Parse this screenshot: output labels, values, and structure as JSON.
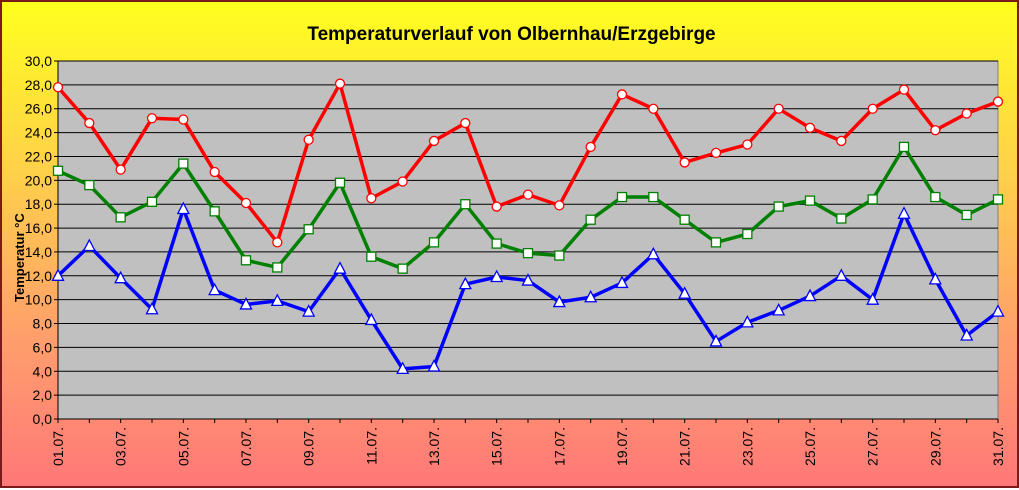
{
  "chart_data": {
    "type": "line",
    "title": "Temperaturverlauf von Olbernhau/Erzgebirge",
    "xlabel": "",
    "ylabel": "Temperatur °C",
    "ylim": [
      0,
      30
    ],
    "y_ticks": [
      "0,0",
      "2,0",
      "4,0",
      "6,0",
      "8,0",
      "10,0",
      "12,0",
      "14,0",
      "16,0",
      "18,0",
      "20,0",
      "22,0",
      "24,0",
      "26,0",
      "28,0",
      "30,0"
    ],
    "x": [
      "01.07.",
      "02.07.",
      "03.07.",
      "04.07.",
      "05.07.",
      "06.07.",
      "07.07.",
      "08.07.",
      "09.07.",
      "10.07.",
      "11.07.",
      "12.07.",
      "13.07.",
      "14.07.",
      "15.07.",
      "16.07.",
      "17.07.",
      "18.07.",
      "19.07.",
      "20.07.",
      "21.07.",
      "22.07.",
      "23.07.",
      "24.07.",
      "25.07.",
      "26.07.",
      "27.07.",
      "28.07.",
      "29.07.",
      "30.07.",
      "31.07."
    ],
    "x_tick_labels": [
      "01.07.",
      "03.07.",
      "05.07.",
      "07.07.",
      "09.07.",
      "11.07.",
      "13.07.",
      "15.07.",
      "17.07.",
      "19.07.",
      "21.07.",
      "23.07.",
      "25.07.",
      "27.07.",
      "29.07.",
      "31.07."
    ],
    "grid": true,
    "legend": "none",
    "series": [
      {
        "color": "#ff0000",
        "marker": "circle",
        "values": [
          27.8,
          24.8,
          20.9,
          25.2,
          25.1,
          20.7,
          18.1,
          14.8,
          23.4,
          28.1,
          18.5,
          19.9,
          23.3,
          24.8,
          17.8,
          18.8,
          17.9,
          22.8,
          27.2,
          26.0,
          21.5,
          22.3,
          23.0,
          26.0,
          24.4,
          23.3,
          26.0,
          27.6,
          24.2,
          25.6,
          26.6
        ]
      },
      {
        "color": "#008000",
        "marker": "square",
        "values": [
          20.8,
          19.6,
          16.9,
          18.2,
          21.4,
          17.4,
          13.3,
          12.7,
          15.9,
          19.8,
          13.6,
          12.6,
          14.8,
          18.0,
          14.7,
          13.9,
          13.7,
          16.7,
          18.6,
          18.6,
          16.7,
          14.8,
          15.5,
          17.8,
          18.3,
          16.8,
          18.4,
          22.8,
          18.6,
          17.1,
          18.4
        ]
      },
      {
        "color": "#0000ff",
        "marker": "triangle",
        "values": [
          12.0,
          14.5,
          11.8,
          9.2,
          17.6,
          10.8,
          9.6,
          9.9,
          9.0,
          12.6,
          8.3,
          4.2,
          4.4,
          11.3,
          11.9,
          11.6,
          9.8,
          10.2,
          11.4,
          13.8,
          10.5,
          6.5,
          8.1,
          9.1,
          10.3,
          12.0,
          10.0,
          17.2,
          11.7,
          7.0,
          9.0
        ]
      }
    ]
  }
}
